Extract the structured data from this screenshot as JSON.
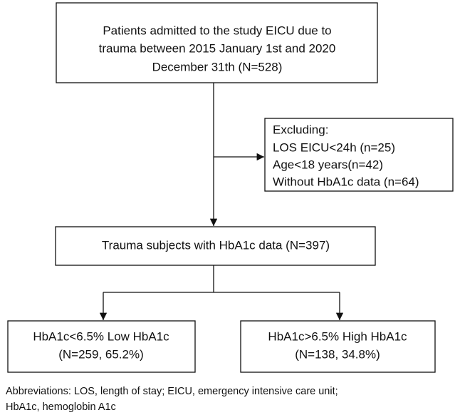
{
  "nodes": [
    {
      "lines": [
        "Patients admitted to the study EICU due to",
        "trauma between  2015 January 1st and 2020",
        "December 31th (N=528)"
      ]
    },
    {
      "lines": [
        "Excluding:",
        "LOS EICU<24h (n=25)",
        "Age<18 years(n=42)",
        "Without HbA1c data (n=64)"
      ]
    },
    {
      "lines": [
        "Trauma subjects with  HbA1c data (N=397)"
      ]
    },
    {
      "lines": [
        "HbA1c<6.5% Low HbA1c",
        "(N=259, 65.2%)"
      ]
    },
    {
      "lines": [
        "HbA1c>6.5% High HbA1c",
        "(N=138, 34.8%)"
      ]
    }
  ],
  "footnote": [
    "Abbreviations: LOS, length of stay; EICU, emergency intensive care unit;",
    "HbA1c, hemoglobin A1c"
  ]
}
